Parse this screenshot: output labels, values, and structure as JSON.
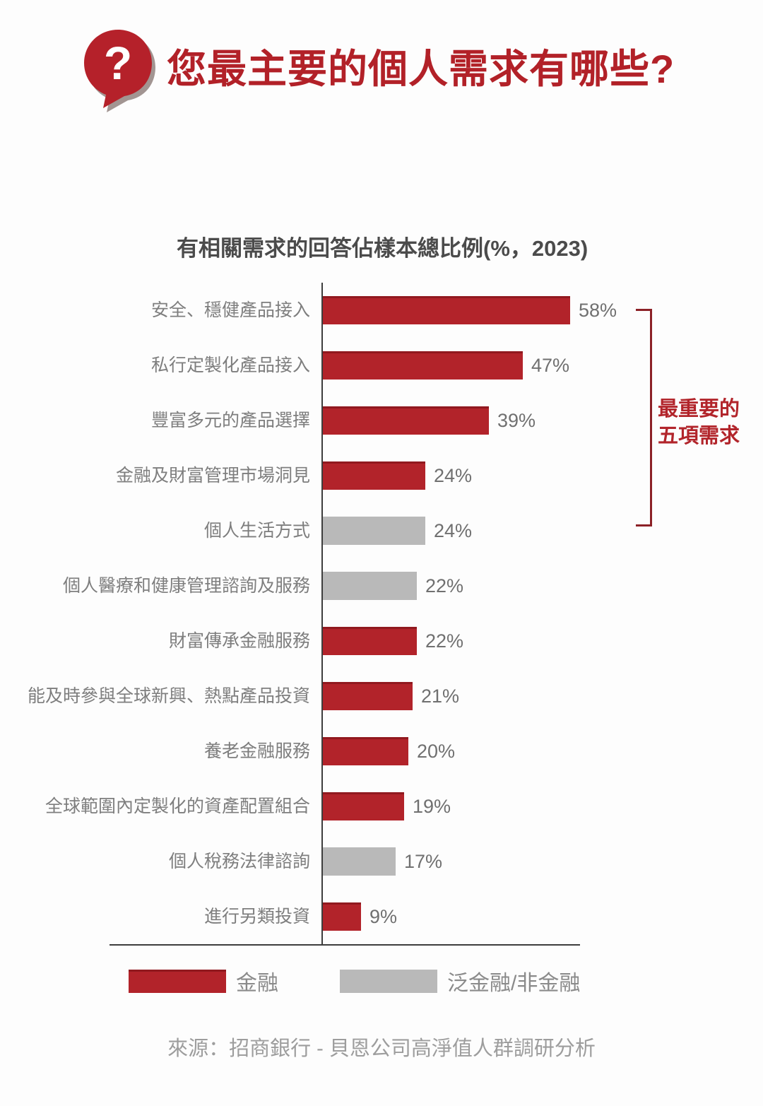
{
  "chart_data": {
    "type": "bar",
    "orientation": "horizontal",
    "title": "您最主要的個人需求有哪些?",
    "subtitle": "有相關需求的回答佔樣本總比例(%，2023)",
    "categories": [
      "安全、穩健產品接入",
      "私行定製化產品接入",
      "豐富多元的產品選擇",
      "金融及財富管理市場洞見",
      "個人生活方式",
      "個人醫療和健康管理諮詢及服務",
      "財富傳承金融服務",
      "能及時參與全球新興、熱點產品投資",
      "養老金融服務",
      "全球範圍內定製化的資產配置組合",
      "個人稅務法律諮詢",
      "進行另類投資"
    ],
    "values": [
      58,
      47,
      39,
      24,
      24,
      22,
      22,
      21,
      20,
      19,
      17,
      9
    ],
    "unit": "%",
    "groups": [
      "金融",
      "金融",
      "金融",
      "金融",
      "泛金融/非金融",
      "泛金融/非金融",
      "金融",
      "金融",
      "金融",
      "金融",
      "泛金融/非金融",
      "金融"
    ],
    "colors": {
      "金融": "#b2232a",
      "泛金融/非金融": "#b9b9b9"
    },
    "xlim": [
      0,
      60
    ],
    "grid": false,
    "legend": [
      {
        "label": "金融",
        "color": "#b2232a"
      },
      {
        "label": "泛金融/非金融",
        "color": "#b9b9b9"
      }
    ],
    "annotation": {
      "line1": "最重要的",
      "line2": "五項需求",
      "span_categories_from": "安全、穩健產品接入",
      "span_categories_to": "個人生活方式"
    }
  },
  "header": {
    "icon": "question-mark-bubble-icon",
    "icon_color": "#b5212a",
    "question_glyph": "?"
  },
  "source": {
    "text": "來源：招商銀行 - 貝恩公司高淨值人群調研分析"
  }
}
